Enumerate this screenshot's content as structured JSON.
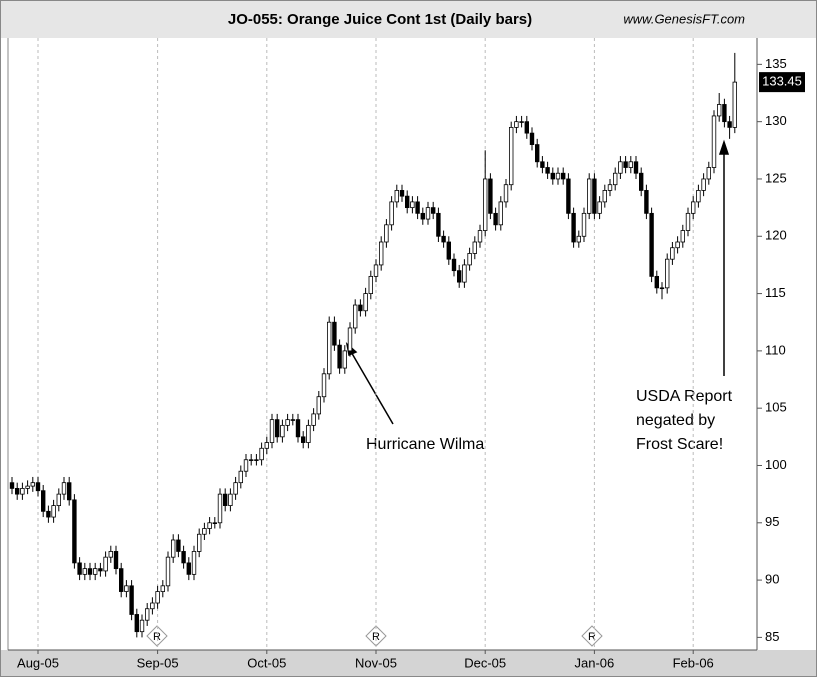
{
  "chart_data": {
    "type": "candlestick",
    "title": "JO-055:  Orange Juice Cont 1st  (Daily bars)",
    "source": "www.GenesisFT.com",
    "annotations": [
      {
        "lines": [
          "Hurricane Wilma"
        ]
      },
      {
        "lines": [
          "USDA Report",
          "negated by",
          "Frost Scare!"
        ]
      }
    ],
    "categories": [
      null,
      null,
      null,
      null,
      null,
      "Aug-05",
      null,
      null,
      null,
      null,
      null,
      null,
      null,
      null,
      null,
      null,
      null,
      null,
      null,
      null,
      null,
      null,
      null,
      null,
      null,
      null,
      null,
      null,
      "Sep-05",
      null,
      null,
      null,
      null,
      null,
      null,
      null,
      null,
      null,
      null,
      null,
      null,
      null,
      null,
      null,
      null,
      null,
      null,
      null,
      null,
      "Oct-05",
      null,
      null,
      null,
      null,
      null,
      null,
      null,
      null,
      null,
      null,
      null,
      null,
      null,
      null,
      null,
      null,
      null,
      null,
      null,
      null,
      "Nov-05",
      null,
      null,
      null,
      null,
      null,
      null,
      null,
      null,
      null,
      null,
      null,
      null,
      null,
      null,
      null,
      null,
      null,
      null,
      null,
      null,
      "Dec-05",
      null,
      null,
      null,
      null,
      null,
      null,
      null,
      null,
      null,
      null,
      null,
      null,
      null,
      null,
      null,
      null,
      null,
      null,
      null,
      null,
      "Jan-06",
      null,
      null,
      null,
      null,
      null,
      null,
      null,
      null,
      null,
      null,
      null,
      null,
      null,
      null,
      null,
      null,
      null,
      null,
      "Feb-06",
      null,
      null,
      null,
      null,
      null,
      null,
      null,
      null
    ],
    "open": [
      98.5,
      98.0,
      97.5,
      98.0,
      98.2,
      98.5,
      97.8,
      96.0,
      95.5,
      96.5,
      97.5,
      98.5,
      97.0,
      91.5,
      90.5,
      91.0,
      90.5,
      91.0,
      90.8,
      92.0,
      92.5,
      91.0,
      89.0,
      89.5,
      87.0,
      85.5,
      86.5,
      87.5,
      88.0,
      89.0,
      89.5,
      92.0,
      93.5,
      92.5,
      91.5,
      90.5,
      92.5,
      94.0,
      94.5,
      95.0,
      95.0,
      97.5,
      96.5,
      97.5,
      98.5,
      99.5,
      100.5,
      100.5,
      100.5,
      101.5,
      102.0,
      104.0,
      102.5,
      103.5,
      104.0,
      104.0,
      102.5,
      102.0,
      103.5,
      104.5,
      106.0,
      108.0,
      112.5,
      110.5,
      108.5,
      110.0,
      112.0,
      114.0,
      113.5,
      115.0,
      116.5,
      117.5,
      119.5,
      121.0,
      123.0,
      124.0,
      123.5,
      122.5,
      123.0,
      122.0,
      121.5,
      122.5,
      122.0,
      120.0,
      119.5,
      118.0,
      117.0,
      116.0,
      117.5,
      118.5,
      119.5,
      120.5,
      125.0,
      122.0,
      121.0,
      123.0,
      124.5,
      129.5,
      130.0,
      130.0,
      129.0,
      128.0,
      126.5,
      126.0,
      125.5,
      125.0,
      125.5,
      125.0,
      122.0,
      119.5,
      120.0,
      122.0,
      125.0,
      122.0,
      123.0,
      124.0,
      124.5,
      125.5,
      126.5,
      126.0,
      126.5,
      125.5,
      124.0,
      122.0,
      116.5,
      115.5,
      115.5,
      118.0,
      119.0,
      119.5,
      120.5,
      122.0,
      123.0,
      124.0,
      125.0,
      126.0,
      130.5,
      131.5,
      130.0,
      129.5
    ],
    "high": [
      99.0,
      98.5,
      98.5,
      98.7,
      99.0,
      99.0,
      98.3,
      96.5,
      97.0,
      98.0,
      99.0,
      99.0,
      97.5,
      92.0,
      91.5,
      91.5,
      91.5,
      91.5,
      92.5,
      93.0,
      93.0,
      91.5,
      90.0,
      90.0,
      87.5,
      87.0,
      88.0,
      88.5,
      89.5,
      90.0,
      92.5,
      94.0,
      94.0,
      93.0,
      92.0,
      93.0,
      94.5,
      95.0,
      95.5,
      95.5,
      98.0,
      98.0,
      98.0,
      99.0,
      100.0,
      101.0,
      101.0,
      101.0,
      102.0,
      102.5,
      104.5,
      104.5,
      104.0,
      104.5,
      104.5,
      104.5,
      103.0,
      104.0,
      105.0,
      106.5,
      108.5,
      113.0,
      113.0,
      111.0,
      110.5,
      112.5,
      114.5,
      114.5,
      115.5,
      117.0,
      118.0,
      120.0,
      121.5,
      123.5,
      124.5,
      124.5,
      124.0,
      123.5,
      123.5,
      122.5,
      123.0,
      123.0,
      122.5,
      120.5,
      120.0,
      118.5,
      117.5,
      118.0,
      119.0,
      120.0,
      121.0,
      127.5,
      125.5,
      122.5,
      123.5,
      125.0,
      130.0,
      130.5,
      130.5,
      130.5,
      129.5,
      128.5,
      127.0,
      126.5,
      126.0,
      126.0,
      126.0,
      125.5,
      122.5,
      120.5,
      122.5,
      125.5,
      125.5,
      123.5,
      124.5,
      125.0,
      126.0,
      127.0,
      127.0,
      127.0,
      127.0,
      126.0,
      124.5,
      122.5,
      117.0,
      116.0,
      118.5,
      119.5,
      120.0,
      121.0,
      122.5,
      123.5,
      124.5,
      125.5,
      126.5,
      131.0,
      132.5,
      132.0,
      130.5,
      136.0
    ],
    "low": [
      97.5,
      97.0,
      97.0,
      97.5,
      97.7,
      97.3,
      95.5,
      95.0,
      95.0,
      96.0,
      97.0,
      96.5,
      91.0,
      90.0,
      90.0,
      90.0,
      90.0,
      90.3,
      90.3,
      91.5,
      90.5,
      88.5,
      88.5,
      86.5,
      85.0,
      85.0,
      86.0,
      87.0,
      87.5,
      88.5,
      89.0,
      91.5,
      92.0,
      91.0,
      90.0,
      90.0,
      92.0,
      93.5,
      94.0,
      94.5,
      94.5,
      96.0,
      96.0,
      97.0,
      98.0,
      99.0,
      100.0,
      100.0,
      100.0,
      101.0,
      101.5,
      102.0,
      102.0,
      103.0,
      103.5,
      102.0,
      101.5,
      101.5,
      103.0,
      104.0,
      105.5,
      107.5,
      110.0,
      108.0,
      108.0,
      109.5,
      111.5,
      113.0,
      113.0,
      114.5,
      116.0,
      117.0,
      119.0,
      120.5,
      122.5,
      123.0,
      122.0,
      122.0,
      121.5,
      121.0,
      121.0,
      121.5,
      119.5,
      119.0,
      117.5,
      116.5,
      115.5,
      115.5,
      117.0,
      118.0,
      119.0,
      120.0,
      121.5,
      120.5,
      120.5,
      122.5,
      124.0,
      129.0,
      129.5,
      128.5,
      127.5,
      126.0,
      125.5,
      125.0,
      124.5,
      124.5,
      124.5,
      121.5,
      119.0,
      119.0,
      119.5,
      121.5,
      121.5,
      121.5,
      122.5,
      123.5,
      124.0,
      125.0,
      125.5,
      125.5,
      125.0,
      123.5,
      121.5,
      116.0,
      115.0,
      114.5,
      115.0,
      117.5,
      118.5,
      119.0,
      120.0,
      121.5,
      122.5,
      123.5,
      124.5,
      125.5,
      130.0,
      129.5,
      128.5,
      129.0
    ],
    "close": [
      98.0,
      97.5,
      98.0,
      98.2,
      98.5,
      97.8,
      96.0,
      95.5,
      96.5,
      97.5,
      98.5,
      97.0,
      91.5,
      90.5,
      91.0,
      90.5,
      91.0,
      90.8,
      92.0,
      92.5,
      91.0,
      89.0,
      89.5,
      87.0,
      85.5,
      86.5,
      87.5,
      88.0,
      89.0,
      89.5,
      92.0,
      93.5,
      92.5,
      91.5,
      90.5,
      92.5,
      94.0,
      94.5,
      95.0,
      95.0,
      97.5,
      96.5,
      97.5,
      98.5,
      99.5,
      100.5,
      100.5,
      100.5,
      101.5,
      102.0,
      104.0,
      102.5,
      103.5,
      104.0,
      104.0,
      102.5,
      102.0,
      103.5,
      104.5,
      106.0,
      108.0,
      112.5,
      110.5,
      108.5,
      110.0,
      112.0,
      114.0,
      113.5,
      115.0,
      116.5,
      117.5,
      119.5,
      121.0,
      123.0,
      124.0,
      123.5,
      122.5,
      123.0,
      122.0,
      121.5,
      122.5,
      122.0,
      120.0,
      119.5,
      118.0,
      117.0,
      116.0,
      117.5,
      118.5,
      119.5,
      120.5,
      125.0,
      122.0,
      121.0,
      123.0,
      124.5,
      129.5,
      130.0,
      130.0,
      129.0,
      128.0,
      126.5,
      126.0,
      125.5,
      125.0,
      125.5,
      125.0,
      122.0,
      119.5,
      120.0,
      122.0,
      125.0,
      122.0,
      123.0,
      124.0,
      124.5,
      125.5,
      126.5,
      126.0,
      126.5,
      125.5,
      124.0,
      122.0,
      116.5,
      115.5,
      115.5,
      118.0,
      119.0,
      119.5,
      120.5,
      122.0,
      123.0,
      124.0,
      125.0,
      126.0,
      130.5,
      131.5,
      130.0,
      129.5,
      133.45
    ],
    "color": "#000000",
    "ylim": [
      83.9,
      137.3
    ],
    "yticks": [
      85,
      90,
      95,
      100,
      105,
      110,
      115,
      120,
      125,
      130,
      135
    ],
    "grid": true
  }
}
